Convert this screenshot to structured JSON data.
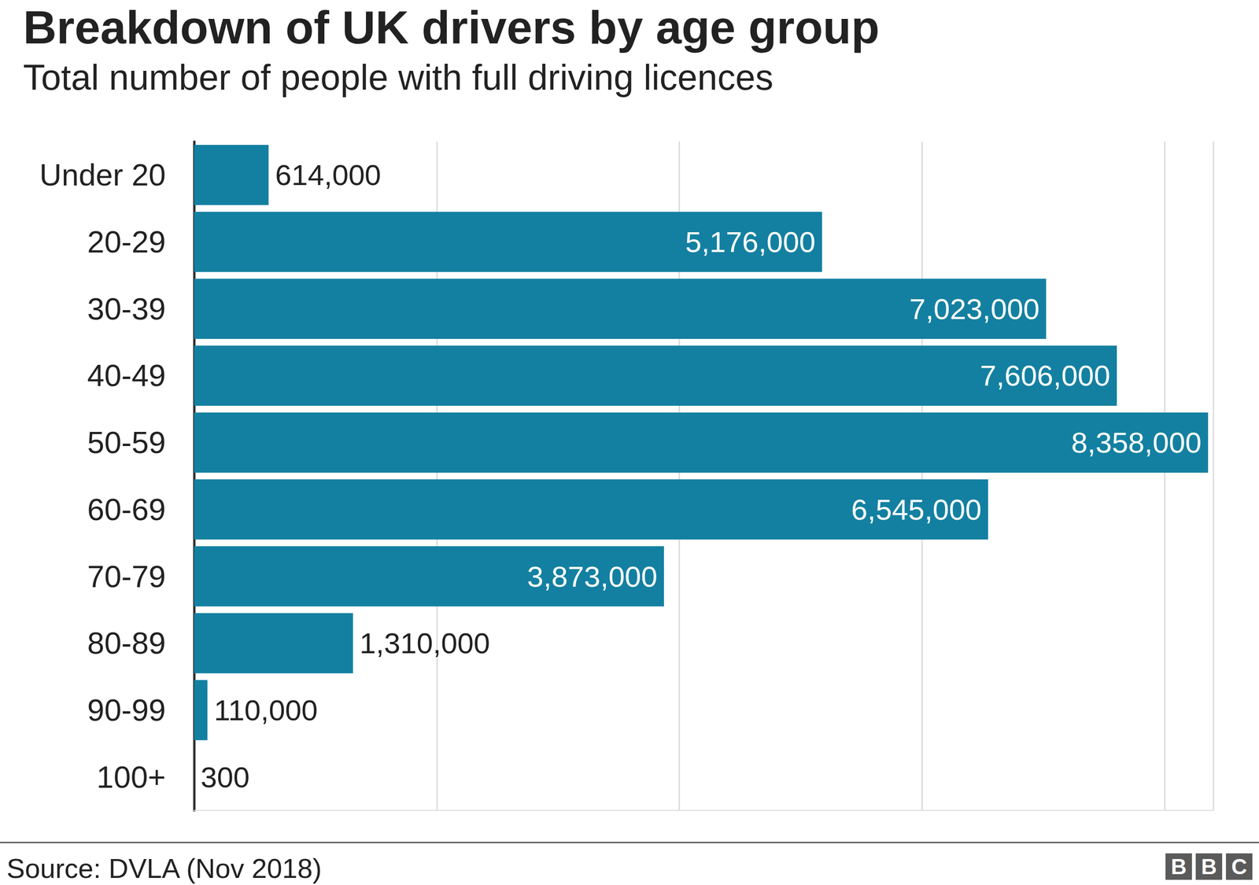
{
  "chart_data": {
    "type": "bar",
    "title": "Breakdown of UK drivers by age group",
    "subtitle": "Total number of people with full driving licences",
    "categories": [
      "Under 20",
      "20-29",
      "30-39",
      "40-49",
      "50-59",
      "60-69",
      "70-79",
      "80-89",
      "90-99",
      "100+"
    ],
    "values": [
      614000,
      5176000,
      7023000,
      7606000,
      8358000,
      6545000,
      3873000,
      1310000,
      110000,
      300
    ],
    "value_labels": [
      "614,000",
      "5,176,000",
      "7,023,000",
      "7,606,000",
      "8,358,000",
      "6,545,000",
      "3,873,000",
      "1,310,000",
      "110,000",
      "300"
    ],
    "color": "#1380a1",
    "orientation": "horizontal",
    "xlim": [
      0,
      8400000
    ],
    "xticks": [
      0,
      2000000,
      4000000,
      6000000,
      8000000
    ],
    "grid": true,
    "data_labels": true,
    "tick_labels": "y",
    "source": "Source: DVLA (Nov 2018)",
    "logo": "BBC"
  }
}
